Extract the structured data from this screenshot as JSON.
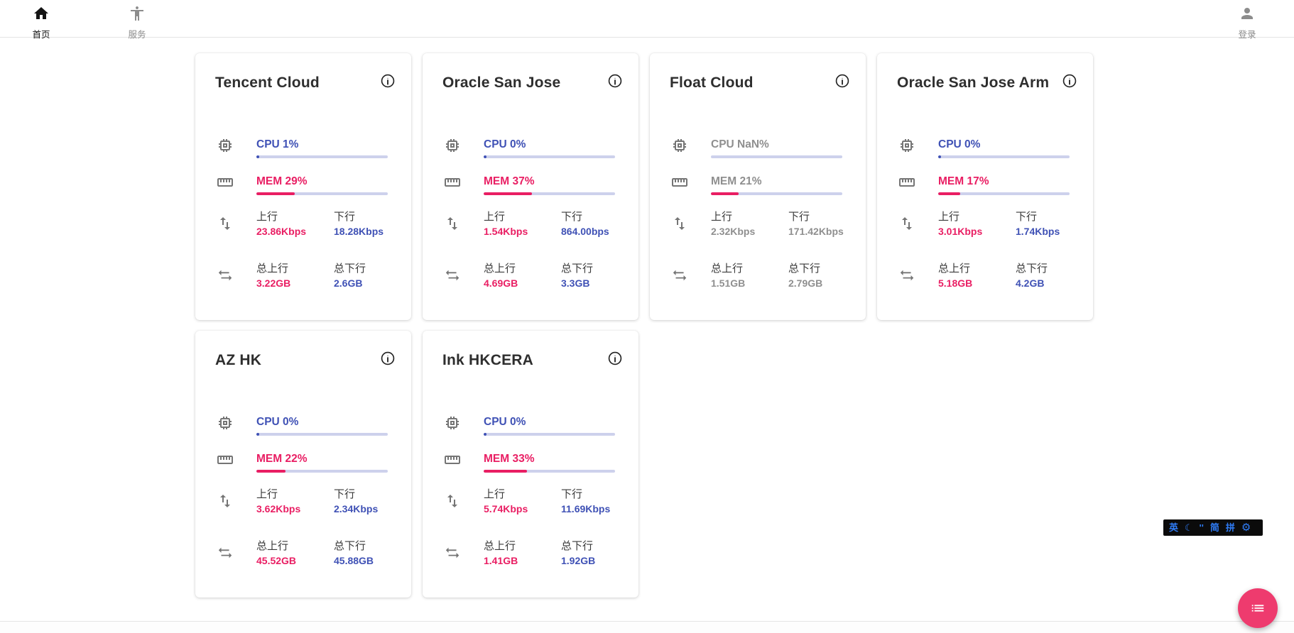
{
  "nav": {
    "home_label": "首页",
    "services_label": "服务",
    "login_label": "登录"
  },
  "labels": {
    "up": "上行",
    "down": "下行",
    "total_up": "总上行",
    "total_down": "总下行"
  },
  "colors": {
    "accent_blue": "#3f51b5",
    "accent_pink": "#e91e63",
    "muted_gray": "#8f8f8f",
    "bar_track": "#cdd1ec",
    "fab_pink": "#ee3b6e",
    "ime_blue": "#2f7cf6",
    "ime_bg": "#0b0b0b"
  },
  "servers": [
    {
      "name": "Tencent Cloud",
      "cpu_text": "CPU 1%",
      "cpu_pct": 1,
      "mem_text": "MEM 29%",
      "mem_pct": 29,
      "up": "23.86Kbps",
      "down": "18.28Kbps",
      "total_up": "3.22GB",
      "total_down": "2.6GB",
      "muted": false
    },
    {
      "name": "Oracle San Jose",
      "cpu_text": "CPU 0%",
      "cpu_pct": 0,
      "mem_text": "MEM 37%",
      "mem_pct": 37,
      "up": "1.54Kbps",
      "down": "864.00bps",
      "total_up": "4.69GB",
      "total_down": "3.3GB",
      "muted": false
    },
    {
      "name": "Float Cloud",
      "cpu_text": "CPU NaN%",
      "cpu_pct": 0,
      "mem_text": "MEM 21%",
      "mem_pct": 21,
      "up": "2.32Kbps",
      "down": "171.42Kbps",
      "total_up": "1.51GB",
      "total_down": "2.79GB",
      "muted": true
    },
    {
      "name": "Oracle San Jose Arm",
      "cpu_text": "CPU 0%",
      "cpu_pct": 0,
      "mem_text": "MEM 17%",
      "mem_pct": 17,
      "up": "3.01Kbps",
      "down": "1.74Kbps",
      "total_up": "5.18GB",
      "total_down": "4.2GB",
      "muted": false
    },
    {
      "name": "AZ HK",
      "cpu_text": "CPU 0%",
      "cpu_pct": 0,
      "mem_text": "MEM 22%",
      "mem_pct": 22,
      "up": "3.62Kbps",
      "down": "2.34Kbps",
      "total_up": "45.52GB",
      "total_down": "45.88GB",
      "muted": false
    },
    {
      "name": "Ink HKCERA",
      "cpu_text": "CPU 0%",
      "cpu_pct": 0,
      "mem_text": "MEM 33%",
      "mem_pct": 33,
      "up": "5.74Kbps",
      "down": "11.69Kbps",
      "total_up": "1.41GB",
      "total_down": "1.92GB",
      "muted": false
    }
  ],
  "ime": {
    "items": [
      "英",
      "☾",
      "''",
      "简",
      "拼",
      "⚙"
    ]
  }
}
